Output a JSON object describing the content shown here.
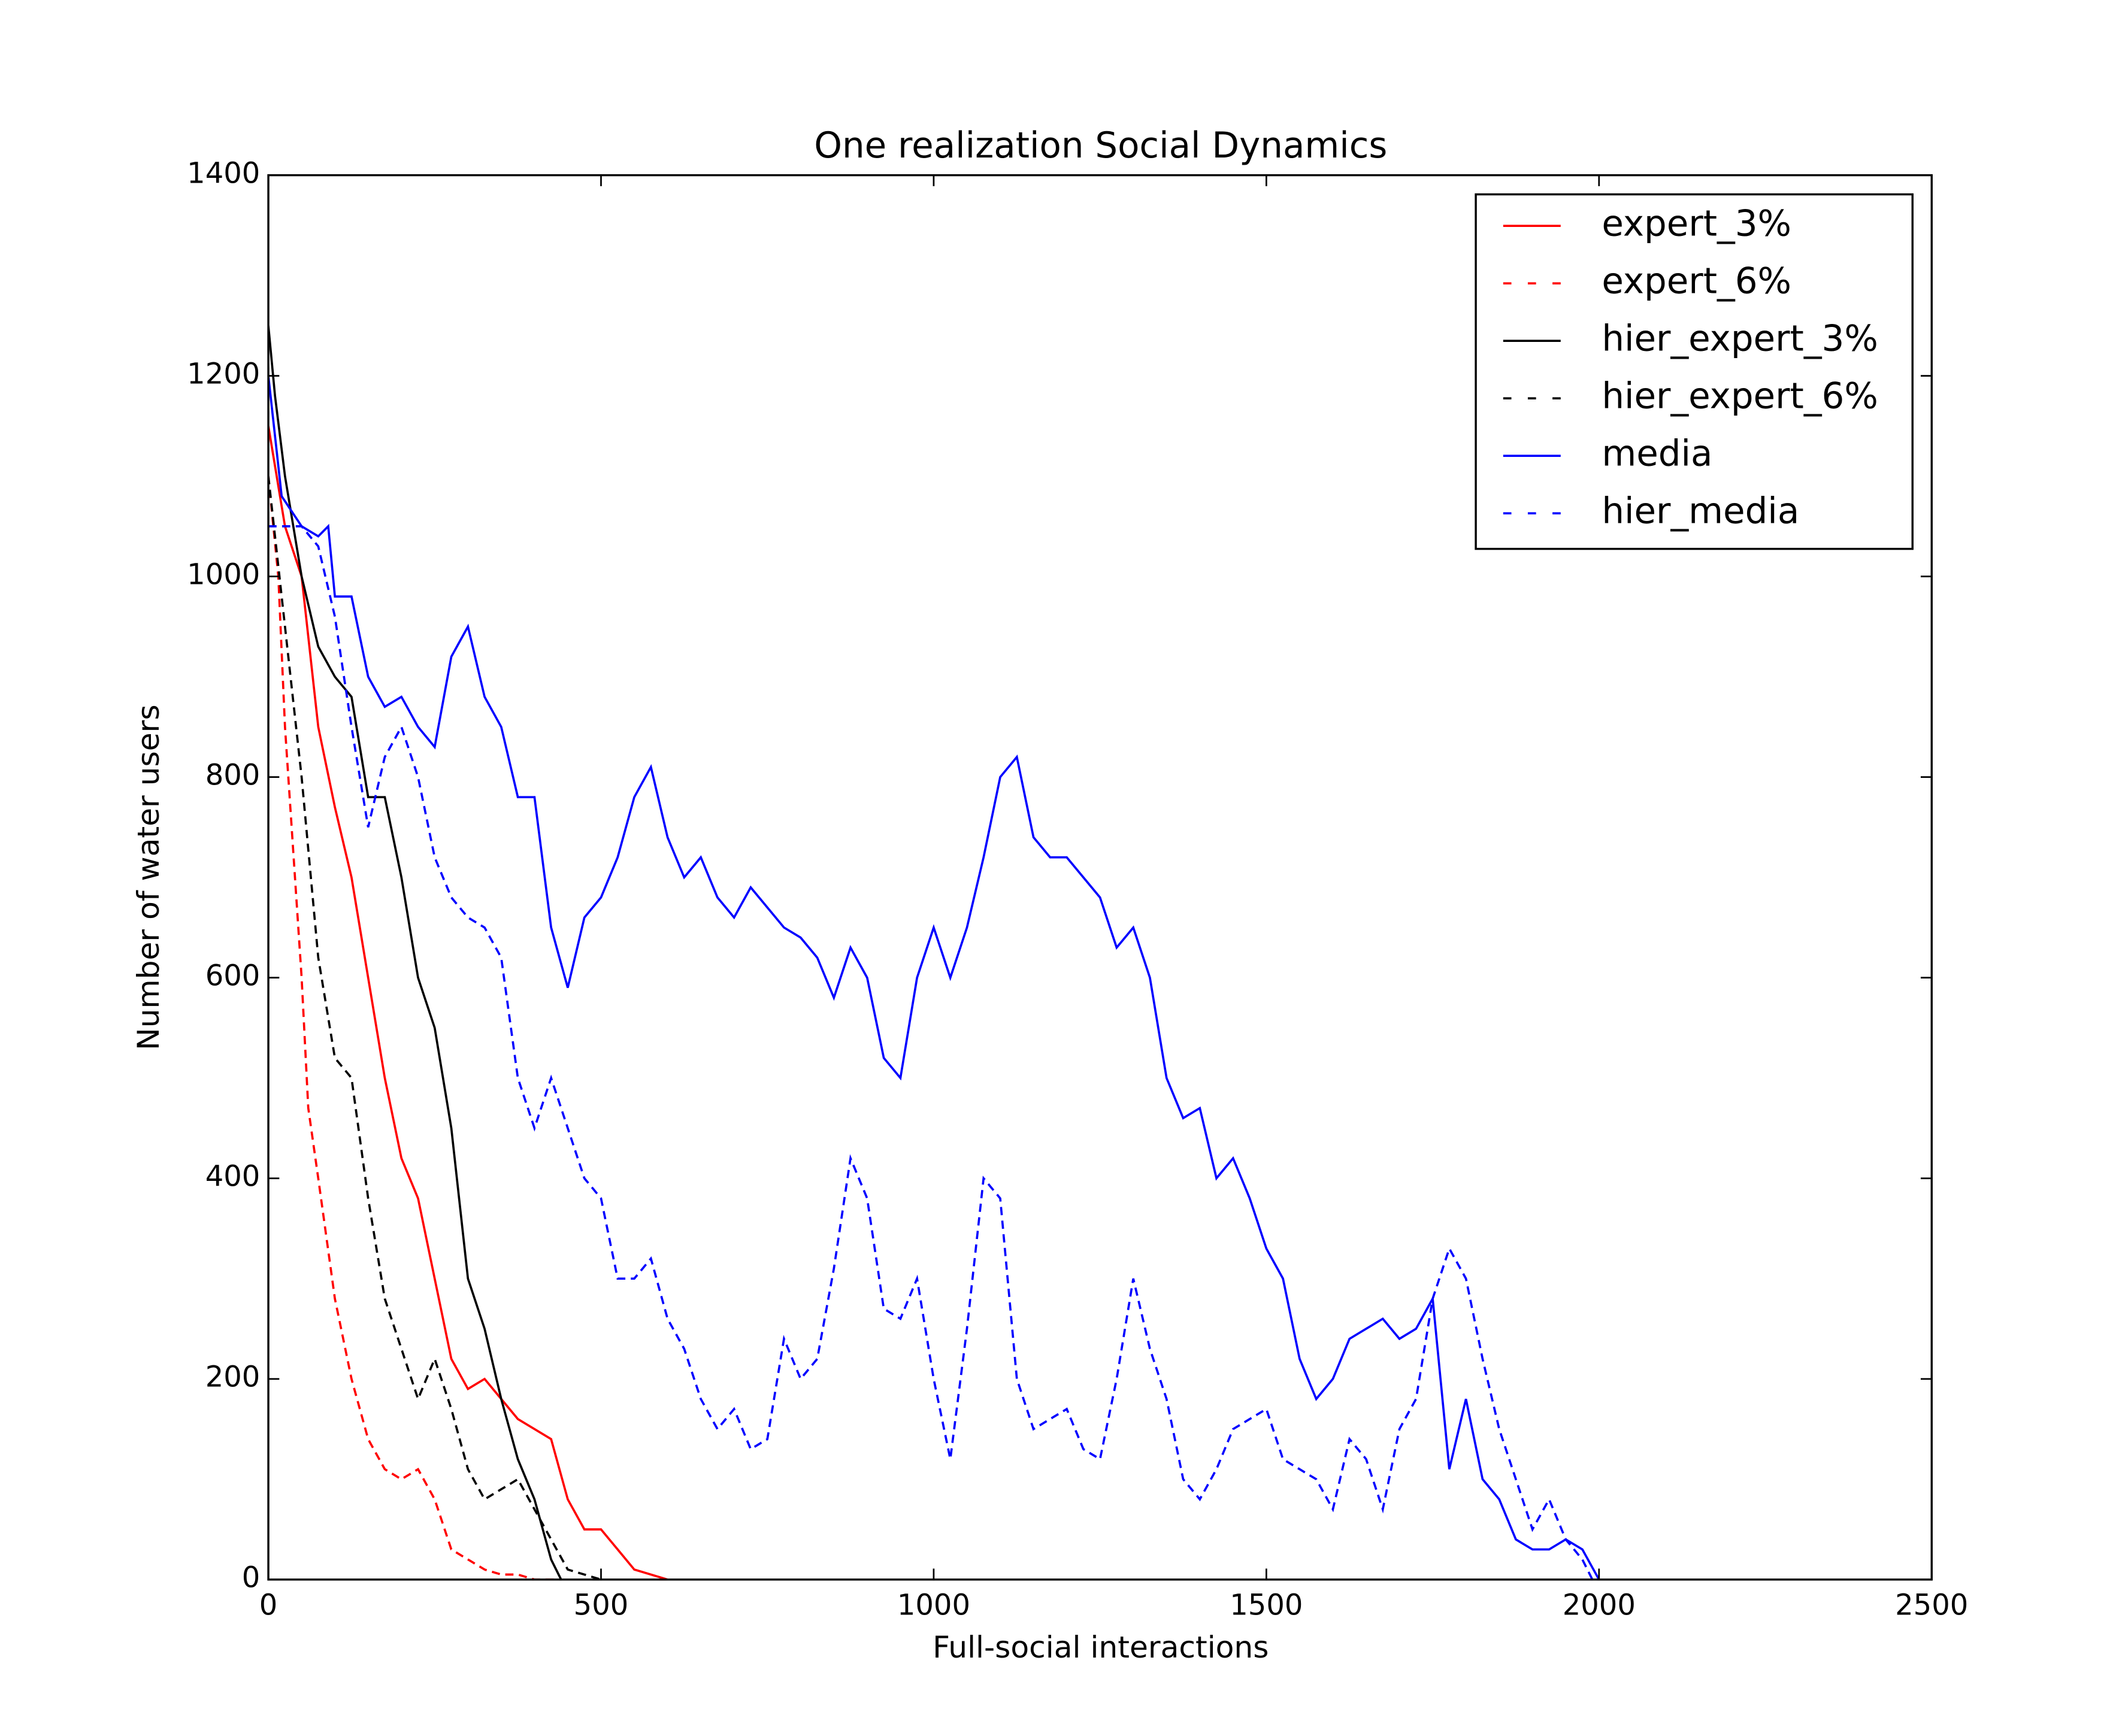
{
  "chart_data": {
    "type": "line",
    "title": "One realization Social Dynamics",
    "xlabel": "Full-social interactions",
    "ylabel": "Number of water users",
    "xlim": [
      0,
      2500
    ],
    "ylim": [
      0,
      1400
    ],
    "xticks": [
      0,
      500,
      1000,
      1500,
      2000,
      2500
    ],
    "yticks": [
      0,
      200,
      400,
      600,
      800,
      1000,
      1200,
      1400
    ],
    "legend": "upper right",
    "series": [
      {
        "name": "expert_3%",
        "color": "#ff0000",
        "linestyle": "solid",
        "x": [
          0,
          25,
          50,
          75,
          100,
          125,
          150,
          175,
          200,
          225,
          250,
          275,
          300,
          325,
          350,
          375,
          400,
          425,
          450,
          475,
          500,
          525,
          550,
          575,
          600
        ],
        "values": [
          1150,
          1050,
          1000,
          850,
          770,
          700,
          600,
          500,
          420,
          380,
          300,
          220,
          190,
          200,
          180,
          160,
          150,
          140,
          80,
          50,
          50,
          30,
          10,
          5,
          0
        ]
      },
      {
        "name": "expert_6%",
        "color": "#ff0000",
        "linestyle": "dashed",
        "x": [
          0,
          15,
          25,
          40,
          50,
          60,
          75,
          100,
          125,
          150,
          175,
          200,
          225,
          250,
          275,
          300,
          325,
          350,
          375,
          400,
          440
        ],
        "values": [
          1100,
          1000,
          850,
          700,
          600,
          470,
          400,
          280,
          200,
          140,
          110,
          100,
          110,
          80,
          30,
          20,
          10,
          5,
          5,
          0,
          0
        ]
      },
      {
        "name": "hier_expert_3%",
        "color": "#000000",
        "linestyle": "solid",
        "x": [
          0,
          10,
          25,
          50,
          75,
          100,
          125,
          150,
          175,
          200,
          225,
          250,
          275,
          300,
          325,
          350,
          375,
          400,
          425,
          440
        ],
        "values": [
          1250,
          1180,
          1100,
          1000,
          930,
          900,
          880,
          780,
          780,
          700,
          600,
          550,
          450,
          300,
          250,
          180,
          120,
          80,
          20,
          0
        ]
      },
      {
        "name": "hier_expert_6%",
        "color": "#000000",
        "linestyle": "dashed",
        "x": [
          0,
          25,
          50,
          75,
          100,
          125,
          150,
          175,
          200,
          225,
          250,
          275,
          300,
          325,
          350,
          375,
          400,
          425,
          450,
          475,
          500
        ],
        "values": [
          1100,
          950,
          800,
          620,
          520,
          500,
          380,
          280,
          230,
          180,
          220,
          170,
          110,
          80,
          90,
          100,
          70,
          40,
          10,
          5,
          0
        ]
      },
      {
        "name": "media",
        "color": "#0000ff",
        "linestyle": "solid",
        "x": [
          0,
          20,
          50,
          75,
          90,
          100,
          125,
          150,
          175,
          200,
          225,
          250,
          275,
          300,
          325,
          350,
          375,
          400,
          425,
          450,
          475,
          500,
          525,
          550,
          575,
          600,
          625,
          650,
          675,
          700,
          725,
          750,
          775,
          800,
          825,
          850,
          875,
          900,
          925,
          950,
          975,
          1000,
          1025,
          1050,
          1075,
          1100,
          1125,
          1150,
          1175,
          1200,
          1225,
          1250,
          1275,
          1300,
          1325,
          1350,
          1375,
          1400,
          1425,
          1450,
          1475,
          1500,
          1525,
          1550,
          1575,
          1600,
          1625,
          1650,
          1675,
          1700,
          1725,
          1750,
          1775,
          1800,
          1825,
          1850,
          1875,
          1900,
          1925,
          1950,
          1975,
          2000
        ],
        "values": [
          1200,
          1080,
          1050,
          1040,
          1050,
          980,
          980,
          900,
          870,
          880,
          850,
          830,
          920,
          950,
          880,
          850,
          780,
          780,
          650,
          590,
          660,
          680,
          720,
          780,
          810,
          740,
          700,
          720,
          680,
          660,
          690,
          670,
          650,
          640,
          620,
          580,
          630,
          600,
          520,
          500,
          600,
          650,
          600,
          650,
          720,
          800,
          820,
          740,
          720,
          720,
          700,
          680,
          630,
          650,
          600,
          500,
          460,
          470,
          400,
          420,
          380,
          330,
          300,
          220,
          180,
          200,
          240,
          250,
          260,
          240,
          250,
          280,
          110,
          180,
          100,
          80,
          40,
          30,
          30,
          40,
          30,
          0
        ]
      },
      {
        "name": "hier_media",
        "color": "#0000ff",
        "linestyle": "dashed",
        "x": [
          0,
          25,
          50,
          75,
          100,
          125,
          150,
          175,
          200,
          225,
          250,
          275,
          300,
          325,
          350,
          375,
          400,
          425,
          450,
          475,
          500,
          525,
          550,
          575,
          600,
          625,
          650,
          675,
          700,
          725,
          750,
          775,
          800,
          825,
          850,
          875,
          900,
          925,
          950,
          975,
          1000,
          1025,
          1050,
          1075,
          1100,
          1125,
          1150,
          1175,
          1200,
          1225,
          1250,
          1275,
          1300,
          1325,
          1350,
          1375,
          1400,
          1425,
          1450,
          1475,
          1500,
          1525,
          1550,
          1575,
          1600,
          1625,
          1650,
          1675,
          1700,
          1725,
          1750,
          1775,
          1800,
          1825,
          1850,
          1875,
          1900,
          1925,
          1950,
          1975,
          1990
        ],
        "values": [
          1050,
          1050,
          1050,
          1030,
          960,
          850,
          750,
          820,
          850,
          800,
          720,
          680,
          660,
          650,
          620,
          500,
          450,
          500,
          450,
          400,
          380,
          300,
          300,
          320,
          260,
          230,
          180,
          150,
          170,
          130,
          140,
          240,
          200,
          220,
          310,
          420,
          380,
          270,
          260,
          300,
          200,
          120,
          250,
          400,
          380,
          200,
          150,
          160,
          170,
          130,
          120,
          200,
          300,
          230,
          180,
          100,
          80,
          110,
          150,
          160,
          170,
          120,
          110,
          100,
          70,
          140,
          120,
          70,
          150,
          180,
          280,
          330,
          300,
          220,
          150,
          100,
          50,
          80,
          40,
          20,
          0
        ]
      }
    ]
  }
}
